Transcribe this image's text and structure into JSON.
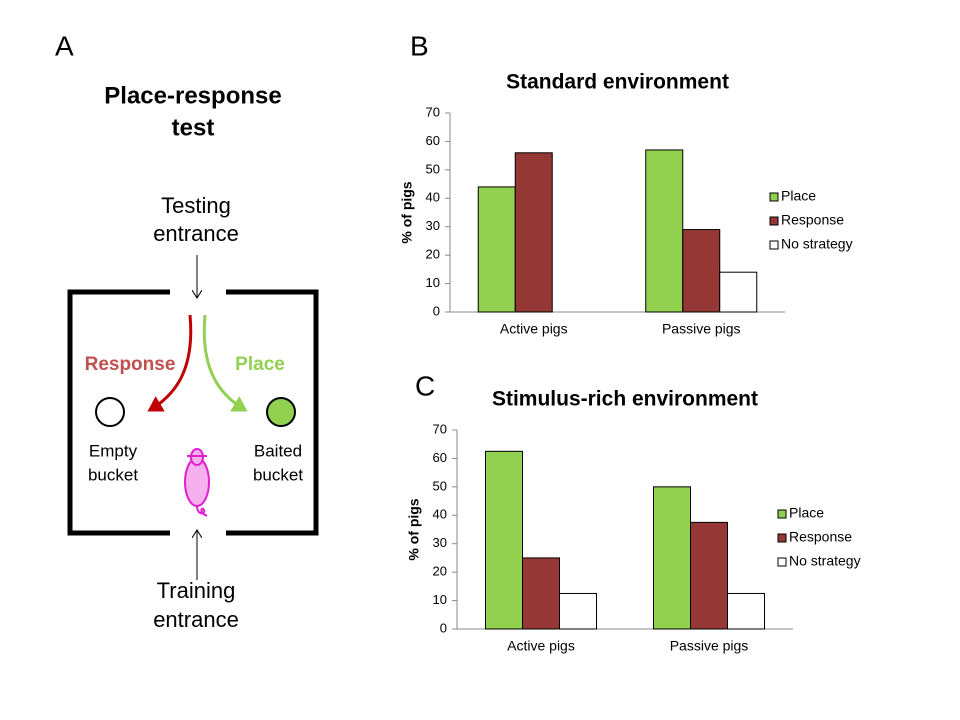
{
  "panel_labels": [
    "A",
    "B",
    "C"
  ],
  "diagram": {
    "title": [
      "Place-response",
      "test"
    ],
    "testing_entrance": [
      "Testing",
      "entrance"
    ],
    "training_entrance": [
      "Training",
      "entrance"
    ],
    "response": "Response",
    "place": "Place",
    "empty_bucket": [
      "Empty",
      "bucket"
    ],
    "baited_bucket": [
      "Baited",
      "bucket"
    ]
  },
  "chart_data": [
    {
      "type": "bar",
      "title": "Standard environment",
      "y_label": "% of pigs",
      "categories": [
        "Active pigs",
        "Passive pigs"
      ],
      "series": [
        {
          "name": "Place",
          "color": "#92d050",
          "values": [
            44,
            57
          ]
        },
        {
          "name": "Response",
          "color": "#953735",
          "values": [
            56,
            29
          ]
        },
        {
          "name": "No strategy",
          "color": "#ffffff",
          "values": [
            0,
            14
          ]
        }
      ],
      "ylim": [
        0,
        70
      ],
      "yticks": [
        0,
        10,
        20,
        30,
        40,
        50,
        60,
        70
      ],
      "grid": false,
      "legend": "right"
    },
    {
      "type": "bar",
      "title": "Stimulus-rich environment",
      "y_label": "% of pigs",
      "categories": [
        "Active pigs",
        "Passive pigs"
      ],
      "series": [
        {
          "name": "Place",
          "color": "#92d050",
          "values": [
            62.5,
            50
          ]
        },
        {
          "name": "Response",
          "color": "#953735",
          "values": [
            25,
            37.5
          ]
        },
        {
          "name": "No strategy",
          "color": "#ffffff",
          "values": [
            12.5,
            12.5
          ]
        }
      ],
      "ylim": [
        0,
        70
      ],
      "yticks": [
        0,
        10,
        20,
        30,
        40,
        50,
        60,
        70
      ],
      "grid": false,
      "legend": "right"
    }
  ]
}
